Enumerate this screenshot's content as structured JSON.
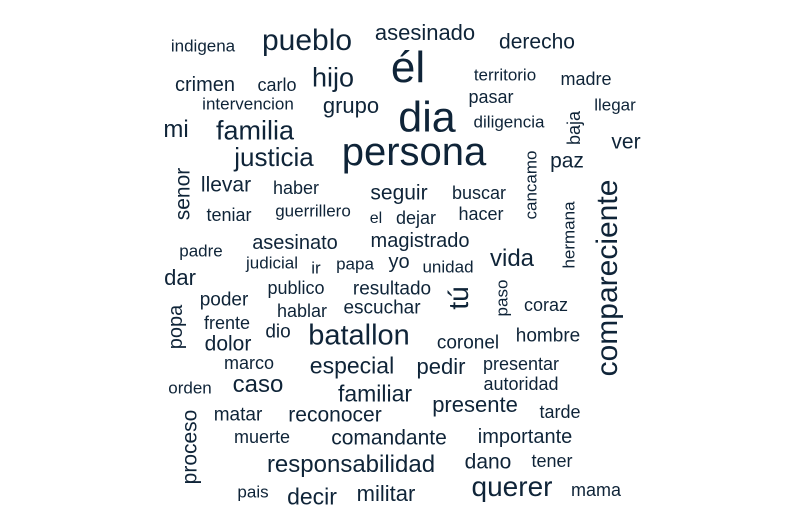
{
  "text_color": "#0f2438",
  "background": "#ffffff",
  "words": [
    {
      "key": "indigena",
      "text": "indigena",
      "weight": 1
    },
    {
      "key": "pueblo",
      "text": "pueblo",
      "weight": 3
    },
    {
      "key": "asesinado",
      "text": "asesinado",
      "weight": 2
    },
    {
      "key": "derecho",
      "text": "derecho",
      "weight": 2
    },
    {
      "key": "el-accent",
      "text": "él",
      "weight": 5
    },
    {
      "key": "crimen",
      "text": "crimen",
      "weight": 2
    },
    {
      "key": "carlo",
      "text": "carlo",
      "weight": 1
    },
    {
      "key": "hijo",
      "text": "hijo",
      "weight": 3
    },
    {
      "key": "territorio",
      "text": "territorio",
      "weight": 1
    },
    {
      "key": "madre",
      "text": "madre",
      "weight": 1
    },
    {
      "key": "intervencion",
      "text": "intervencion",
      "weight": 1
    },
    {
      "key": "grupo",
      "text": "grupo",
      "weight": 2
    },
    {
      "key": "dia",
      "text": "dia",
      "weight": 5
    },
    {
      "key": "pasar",
      "text": "pasar",
      "weight": 1
    },
    {
      "key": "llegar",
      "text": "llegar",
      "weight": 1
    },
    {
      "key": "mi",
      "text": "mi",
      "weight": 2
    },
    {
      "key": "familia",
      "text": "familia",
      "weight": 3
    },
    {
      "key": "diligencia",
      "text": "diligencia",
      "weight": 1
    },
    {
      "key": "baja",
      "text": "baja",
      "weight": 1
    },
    {
      "key": "ver",
      "text": "ver",
      "weight": 2
    },
    {
      "key": "persona",
      "text": "persona",
      "weight": 5
    },
    {
      "key": "justicia",
      "text": "justicia",
      "weight": 3
    },
    {
      "key": "paz",
      "text": "paz",
      "weight": 2
    },
    {
      "key": "cancamo",
      "text": "cancamo",
      "weight": 1
    },
    {
      "key": "compareciente",
      "text": "compareciente",
      "weight": 4
    },
    {
      "key": "senor",
      "text": "senor",
      "weight": 2
    },
    {
      "key": "llevar",
      "text": "llevar",
      "weight": 2
    },
    {
      "key": "haber",
      "text": "haber",
      "weight": 1
    },
    {
      "key": "seguir",
      "text": "seguir",
      "weight": 2
    },
    {
      "key": "buscar",
      "text": "buscar",
      "weight": 1
    },
    {
      "key": "teniar",
      "text": "teniar",
      "weight": 1
    },
    {
      "key": "guerrillero",
      "text": "guerrillero",
      "weight": 1
    },
    {
      "key": "el",
      "text": "el",
      "weight": 1
    },
    {
      "key": "dejar",
      "text": "dejar",
      "weight": 1
    },
    {
      "key": "hacer",
      "text": "hacer",
      "weight": 1
    },
    {
      "key": "hermana",
      "text": "hermana",
      "weight": 1
    },
    {
      "key": "padre",
      "text": "padre",
      "weight": 1
    },
    {
      "key": "asesinato",
      "text": "asesinato",
      "weight": 2
    },
    {
      "key": "magistrado",
      "text": "magistrado",
      "weight": 2
    },
    {
      "key": "vida",
      "text": "vida",
      "weight": 2
    },
    {
      "key": "judicial",
      "text": "judicial",
      "weight": 1
    },
    {
      "key": "ir",
      "text": "ir",
      "weight": 1
    },
    {
      "key": "papa",
      "text": "papa",
      "weight": 1
    },
    {
      "key": "yo",
      "text": "yo",
      "weight": 2
    },
    {
      "key": "unidad",
      "text": "unidad",
      "weight": 1
    },
    {
      "key": "dar",
      "text": "dar",
      "weight": 2
    },
    {
      "key": "publico",
      "text": "publico",
      "weight": 1
    },
    {
      "key": "resultado",
      "text": "resultado",
      "weight": 1
    },
    {
      "key": "tu",
      "text": "tú",
      "weight": 3
    },
    {
      "key": "paso",
      "text": "paso",
      "weight": 1
    },
    {
      "key": "poder",
      "text": "poder",
      "weight": 1
    },
    {
      "key": "hablar",
      "text": "hablar",
      "weight": 1
    },
    {
      "key": "escuchar",
      "text": "escuchar",
      "weight": 1
    },
    {
      "key": "coraz",
      "text": "coraz",
      "weight": 1
    },
    {
      "key": "popa",
      "text": "popa",
      "weight": 2
    },
    {
      "key": "frente",
      "text": "frente",
      "weight": 1
    },
    {
      "key": "dio",
      "text": "dio",
      "weight": 1
    },
    {
      "key": "batallon",
      "text": "batallon",
      "weight": 3
    },
    {
      "key": "coronel",
      "text": "coronel",
      "weight": 1
    },
    {
      "key": "hombre",
      "text": "hombre",
      "weight": 1
    },
    {
      "key": "dolor",
      "text": "dolor",
      "weight": 2
    },
    {
      "key": "marco",
      "text": "marco",
      "weight": 1
    },
    {
      "key": "especial",
      "text": "especial",
      "weight": 2
    },
    {
      "key": "pedir",
      "text": "pedir",
      "weight": 2
    },
    {
      "key": "presentar",
      "text": "presentar",
      "weight": 1
    },
    {
      "key": "orden",
      "text": "orden",
      "weight": 1
    },
    {
      "key": "caso",
      "text": "caso",
      "weight": 2
    },
    {
      "key": "familiar",
      "text": "familiar",
      "weight": 2
    },
    {
      "key": "autoridad",
      "text": "autoridad",
      "weight": 1
    },
    {
      "key": "matar",
      "text": "matar",
      "weight": 1
    },
    {
      "key": "reconocer",
      "text": "reconocer",
      "weight": 2
    },
    {
      "key": "presente",
      "text": "presente",
      "weight": 2
    },
    {
      "key": "tarde",
      "text": "tarde",
      "weight": 1
    },
    {
      "key": "proceso",
      "text": "proceso",
      "weight": 2
    },
    {
      "key": "muerte",
      "text": "muerte",
      "weight": 1
    },
    {
      "key": "comandante",
      "text": "comandante",
      "weight": 2
    },
    {
      "key": "importante",
      "text": "importante",
      "weight": 2
    },
    {
      "key": "responsabilidad",
      "text": "responsabilidad",
      "weight": 2
    },
    {
      "key": "dano",
      "text": "dano",
      "weight": 2
    },
    {
      "key": "tener",
      "text": "tener",
      "weight": 1
    },
    {
      "key": "querer",
      "text": "querer",
      "weight": 3
    },
    {
      "key": "pais",
      "text": "pais",
      "weight": 1
    },
    {
      "key": "decir",
      "text": "decir",
      "weight": 2
    },
    {
      "key": "militar",
      "text": "militar",
      "weight": 2
    },
    {
      "key": "mama",
      "text": "mama",
      "weight": 1
    }
  ]
}
